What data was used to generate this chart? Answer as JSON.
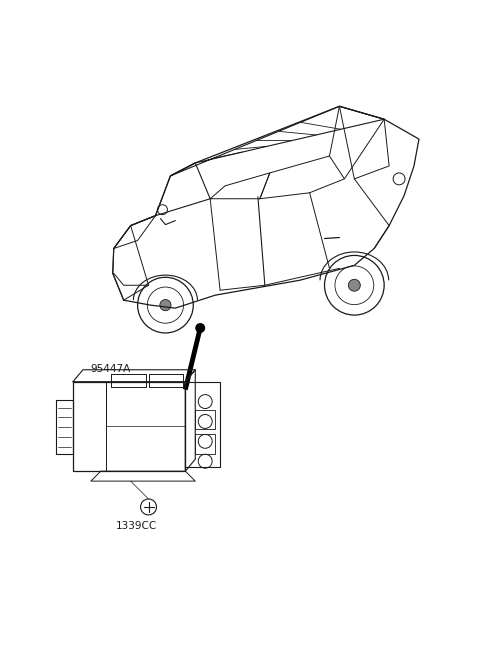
{
  "bg_color": "#ffffff",
  "line_color": "#1a1a1a",
  "part_label_1": "95447A",
  "part_label_2": "1339CC",
  "fig_width": 4.8,
  "fig_height": 6.56,
  "dpi": 100,
  "font_size_labels": 7.5
}
